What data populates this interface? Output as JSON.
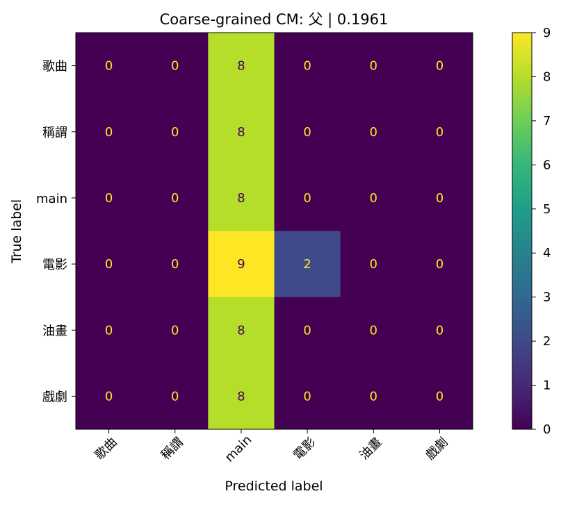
{
  "chart_data": {
    "type": "heatmap",
    "title": "Coarse-grained CM: 父 | 0.1961",
    "xlabel": "Predicted label",
    "ylabel": "True label",
    "x_categories": [
      "歌曲",
      "稱謂",
      "main",
      "電影",
      "油畫",
      "戲劇"
    ],
    "y_categories": [
      "歌曲",
      "稱謂",
      "main",
      "電影",
      "油畫",
      "戲劇"
    ],
    "values": [
      [
        0,
        0,
        8,
        0,
        0,
        0
      ],
      [
        0,
        0,
        8,
        0,
        0,
        0
      ],
      [
        0,
        0,
        8,
        0,
        0,
        0
      ],
      [
        0,
        0,
        9,
        2,
        0,
        0
      ],
      [
        0,
        0,
        8,
        0,
        0,
        0
      ],
      [
        0,
        0,
        8,
        0,
        0,
        0
      ]
    ],
    "colormap": "viridis",
    "vmin": 0,
    "vmax": 9,
    "colorbar_ticks": [
      0,
      1,
      2,
      3,
      4,
      5,
      6,
      7,
      8,
      9
    ]
  }
}
